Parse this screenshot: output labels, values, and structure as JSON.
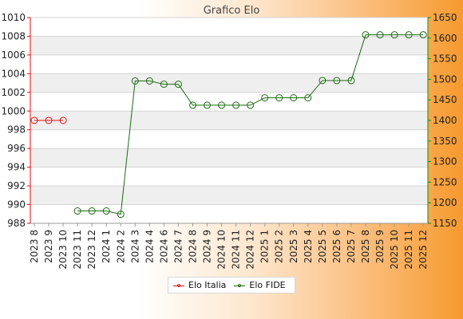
{
  "chart_data": {
    "type": "line",
    "title": "Grafico Elo",
    "categories": [
      "2023 8",
      "2023 9",
      "2023 10",
      "2023 11",
      "2023 12",
      "2024 1",
      "2024 2",
      "2024 3",
      "2024 4",
      "2024 6",
      "2024 7",
      "2024 8",
      "2024 9",
      "2024 10",
      "2024 11",
      "2024 12",
      "2025 1",
      "2025 2",
      "2025 3",
      "2025 4",
      "2025 5",
      "2025 6",
      "2025 7",
      "2025 8",
      "2025 9",
      "2025 10",
      "2025 11",
      "2025 12"
    ],
    "y_left": {
      "min": 988,
      "max": 1010,
      "step": 2
    },
    "y_right": {
      "min": 1150,
      "max": 1650,
      "step": 50
    },
    "grid": true,
    "legend_position": "bottom-center",
    "series": [
      {
        "name": "Elo Italia",
        "axis": "left",
        "color": "#e01010",
        "values": [
          999,
          999,
          999,
          null,
          null,
          null,
          null,
          null,
          null,
          null,
          null,
          null,
          null,
          null,
          null,
          null,
          null,
          null,
          null,
          null,
          null,
          null,
          null,
          null,
          null,
          null,
          null,
          null
        ]
      },
      {
        "name": "Elo FIDE",
        "axis": "right",
        "color": "#1c6b12",
        "values": [
          null,
          null,
          null,
          1180,
          1180,
          1180,
          1172,
          1496,
          1496,
          1488,
          1488,
          1437,
          1437,
          1437,
          1437,
          1437,
          1455,
          1455,
          1455,
          1455,
          1497,
          1497,
          1497,
          1608,
          1608,
          1608,
          1608,
          1608
        ]
      }
    ]
  }
}
